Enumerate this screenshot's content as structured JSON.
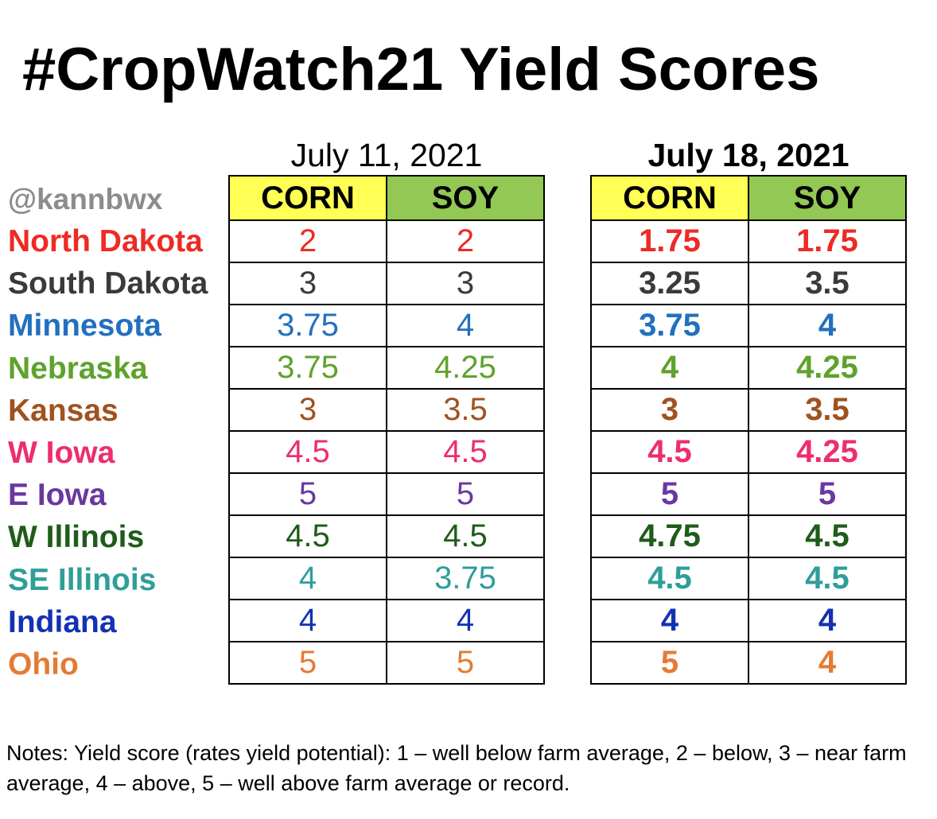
{
  "title": "#CropWatch21 Yield Scores",
  "handle": "@kannbwx",
  "columns": {
    "corn": "CORN",
    "soy": "SOY"
  },
  "periods": [
    {
      "date": "July 11, 2021"
    },
    {
      "date": "July 18, 2021"
    }
  ],
  "rows": [
    {
      "state": "North Dakota",
      "color": "#ee2a24",
      "jul11": {
        "corn": "2",
        "soy": "2"
      },
      "jul18": {
        "corn": "1.75",
        "soy": "1.75"
      }
    },
    {
      "state": "South Dakota",
      "color": "#3a3a3a",
      "jul11": {
        "corn": "3",
        "soy": "3"
      },
      "jul18": {
        "corn": "3.25",
        "soy": "3.5"
      }
    },
    {
      "state": "Minnesota",
      "color": "#2270be",
      "jul11": {
        "corn": "3.75",
        "soy": "4"
      },
      "jul18": {
        "corn": "3.75",
        "soy": "4"
      }
    },
    {
      "state": "Nebraska",
      "color": "#5fa22c",
      "jul11": {
        "corn": "3.75",
        "soy": "4.25"
      },
      "jul18": {
        "corn": "4",
        "soy": "4.25"
      }
    },
    {
      "state": "Kansas",
      "color": "#a0521e",
      "jul11": {
        "corn": "3",
        "soy": "3.5"
      },
      "jul18": {
        "corn": "3",
        "soy": "3.5"
      }
    },
    {
      "state": "W Iowa",
      "color": "#ee2d6e",
      "jul11": {
        "corn": "4.5",
        "soy": "4.5"
      },
      "jul18": {
        "corn": "4.5",
        "soy": "4.25"
      }
    },
    {
      "state": "E Iowa",
      "color": "#6a38a0",
      "jul11": {
        "corn": "5",
        "soy": "5"
      },
      "jul18": {
        "corn": "5",
        "soy": "5"
      }
    },
    {
      "state": "W Illinois",
      "color": "#1f5c1a",
      "jul11": {
        "corn": "4.5",
        "soy": "4.5"
      },
      "jul18": {
        "corn": "4.75",
        "soy": "4.5"
      }
    },
    {
      "state": "SE Illinois",
      "color": "#2e9e98",
      "jul11": {
        "corn": "4",
        "soy": "3.75"
      },
      "jul18": {
        "corn": "4.5",
        "soy": "4.5"
      }
    },
    {
      "state": "Indiana",
      "color": "#1431b4",
      "jul11": {
        "corn": "4",
        "soy": "4"
      },
      "jul18": {
        "corn": "4",
        "soy": "4"
      }
    },
    {
      "state": "Ohio",
      "color": "#e47b35",
      "jul11": {
        "corn": "5",
        "soy": "5"
      },
      "jul18": {
        "corn": "5",
        "soy": "4"
      }
    }
  ],
  "notes": "Notes: Yield score (rates yield potential): 1 – well below farm average, 2 – below, 3 – near farm average, 4 – above, 5 – well above farm average or record.",
  "header_colors": {
    "corn": "#ffff55",
    "soy": "#92c853"
  }
}
